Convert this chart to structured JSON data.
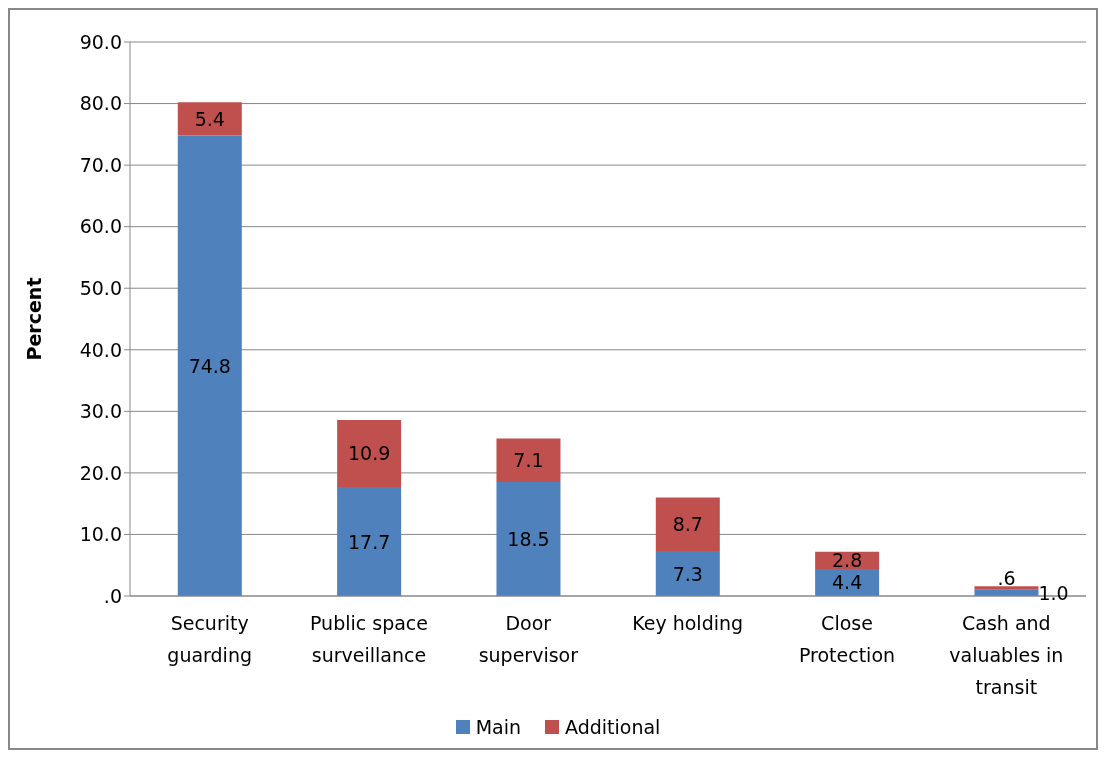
{
  "chart_data": {
    "type": "bar",
    "stacked": true,
    "ylabel": "Percent",
    "categories": [
      "Security guarding",
      "Public space surveillance",
      "Door supervisor",
      "Key holding",
      "Close Protection",
      "Cash and valuables in transit"
    ],
    "series": [
      {
        "name": "Main",
        "color": "#4f81bd",
        "values": [
          74.8,
          17.7,
          18.5,
          7.3,
          4.4,
          1.0
        ],
        "value_labels": [
          "74.8",
          "17.7",
          "18.5",
          "7.3",
          "4.4",
          "1.0"
        ]
      },
      {
        "name": "Additional",
        "color": "#c0504d",
        "values": [
          5.4,
          10.9,
          7.1,
          8.7,
          2.8,
          0.6
        ],
        "value_labels": [
          "5.4",
          "10.9",
          "7.1",
          "8.7",
          "2.8",
          ".6"
        ]
      }
    ],
    "ylim": [
      0,
      90
    ],
    "yticks": [
      {
        "value": 0,
        "label": ".0"
      },
      {
        "value": 10,
        "label": "10.0"
      },
      {
        "value": 20,
        "label": "20.0"
      },
      {
        "value": 30,
        "label": "30.0"
      },
      {
        "value": 40,
        "label": "40.0"
      },
      {
        "value": 50,
        "label": "50.0"
      },
      {
        "value": 60,
        "label": "60.0"
      },
      {
        "value": 70,
        "label": "70.0"
      },
      {
        "value": 80,
        "label": "80.0"
      },
      {
        "value": 90,
        "label": "90.0"
      }
    ],
    "grid": "y",
    "legend": "bottom"
  }
}
